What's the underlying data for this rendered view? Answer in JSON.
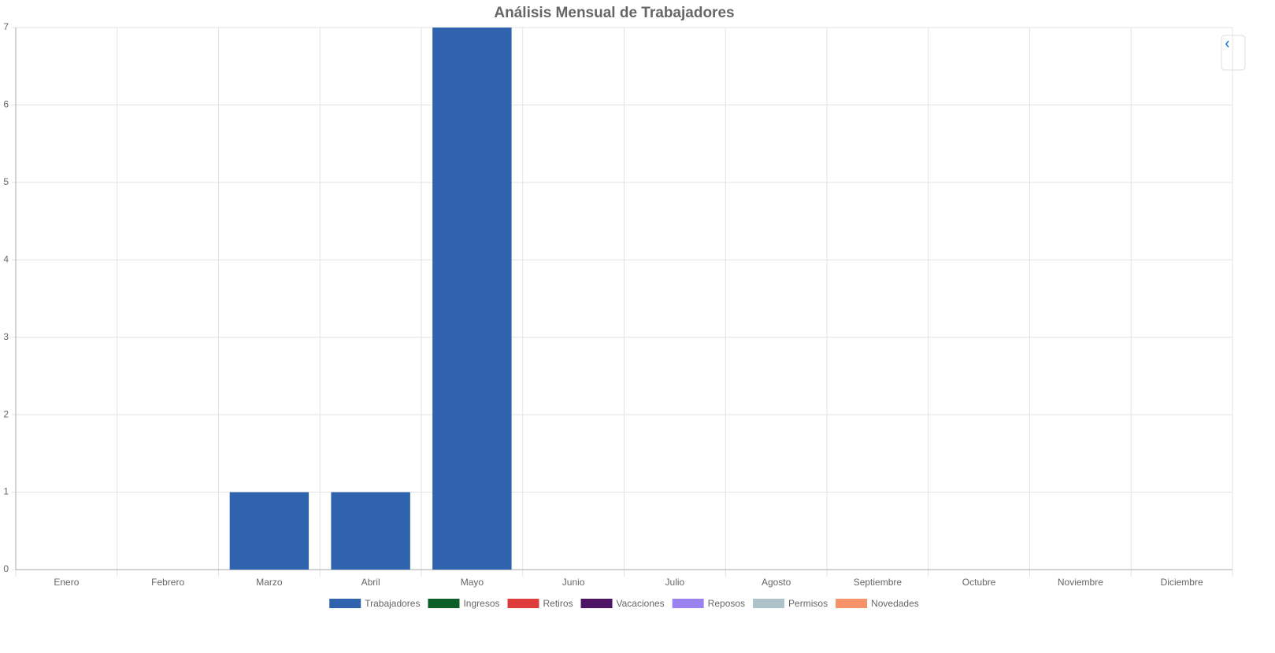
{
  "chart_data": {
    "type": "bar",
    "stacked": true,
    "title": "Análisis Mensual de Trabajadores",
    "categories": [
      "Enero",
      "Febrero",
      "Marzo",
      "Abril",
      "Mayo",
      "Junio",
      "Julio",
      "Agosto",
      "Septiembre",
      "Octubre",
      "Noviembre",
      "Diciembre"
    ],
    "series": [
      {
        "name": "Trabajadores",
        "color": "#3063ae",
        "values": [
          0,
          0,
          1,
          1,
          7,
          0,
          0,
          0,
          0,
          0,
          0,
          0
        ]
      },
      {
        "name": "Ingresos",
        "color": "#0b5e25",
        "values": [
          0,
          0,
          0,
          0,
          0,
          0,
          0,
          0,
          0,
          0,
          0,
          0
        ]
      },
      {
        "name": "Retiros",
        "color": "#df3c3c",
        "values": [
          0,
          0,
          0,
          0,
          0,
          0,
          0,
          0,
          0,
          0,
          0,
          0
        ]
      },
      {
        "name": "Vacaciones",
        "color": "#4d1466",
        "values": [
          0,
          0,
          0,
          0,
          0,
          0,
          0,
          0,
          0,
          0,
          0,
          0
        ]
      },
      {
        "name": "Reposos",
        "color": "#9b82f0",
        "values": [
          0,
          0,
          0,
          0,
          0,
          0,
          0,
          0,
          0,
          0,
          0,
          0
        ]
      },
      {
        "name": "Permisos",
        "color": "#adc2c9",
        "values": [
          0,
          0,
          0,
          0,
          0,
          0,
          0,
          0,
          0,
          0,
          0,
          0
        ]
      },
      {
        "name": "Novedades",
        "color": "#f79169",
        "values": [
          0,
          0,
          0,
          0,
          0,
          0,
          0,
          0,
          0,
          0,
          0,
          0
        ]
      }
    ],
    "ylim": [
      0,
      7
    ],
    "yticks": [
      0,
      1,
      2,
      3,
      4,
      5,
      6,
      7
    ],
    "grid": true
  }
}
